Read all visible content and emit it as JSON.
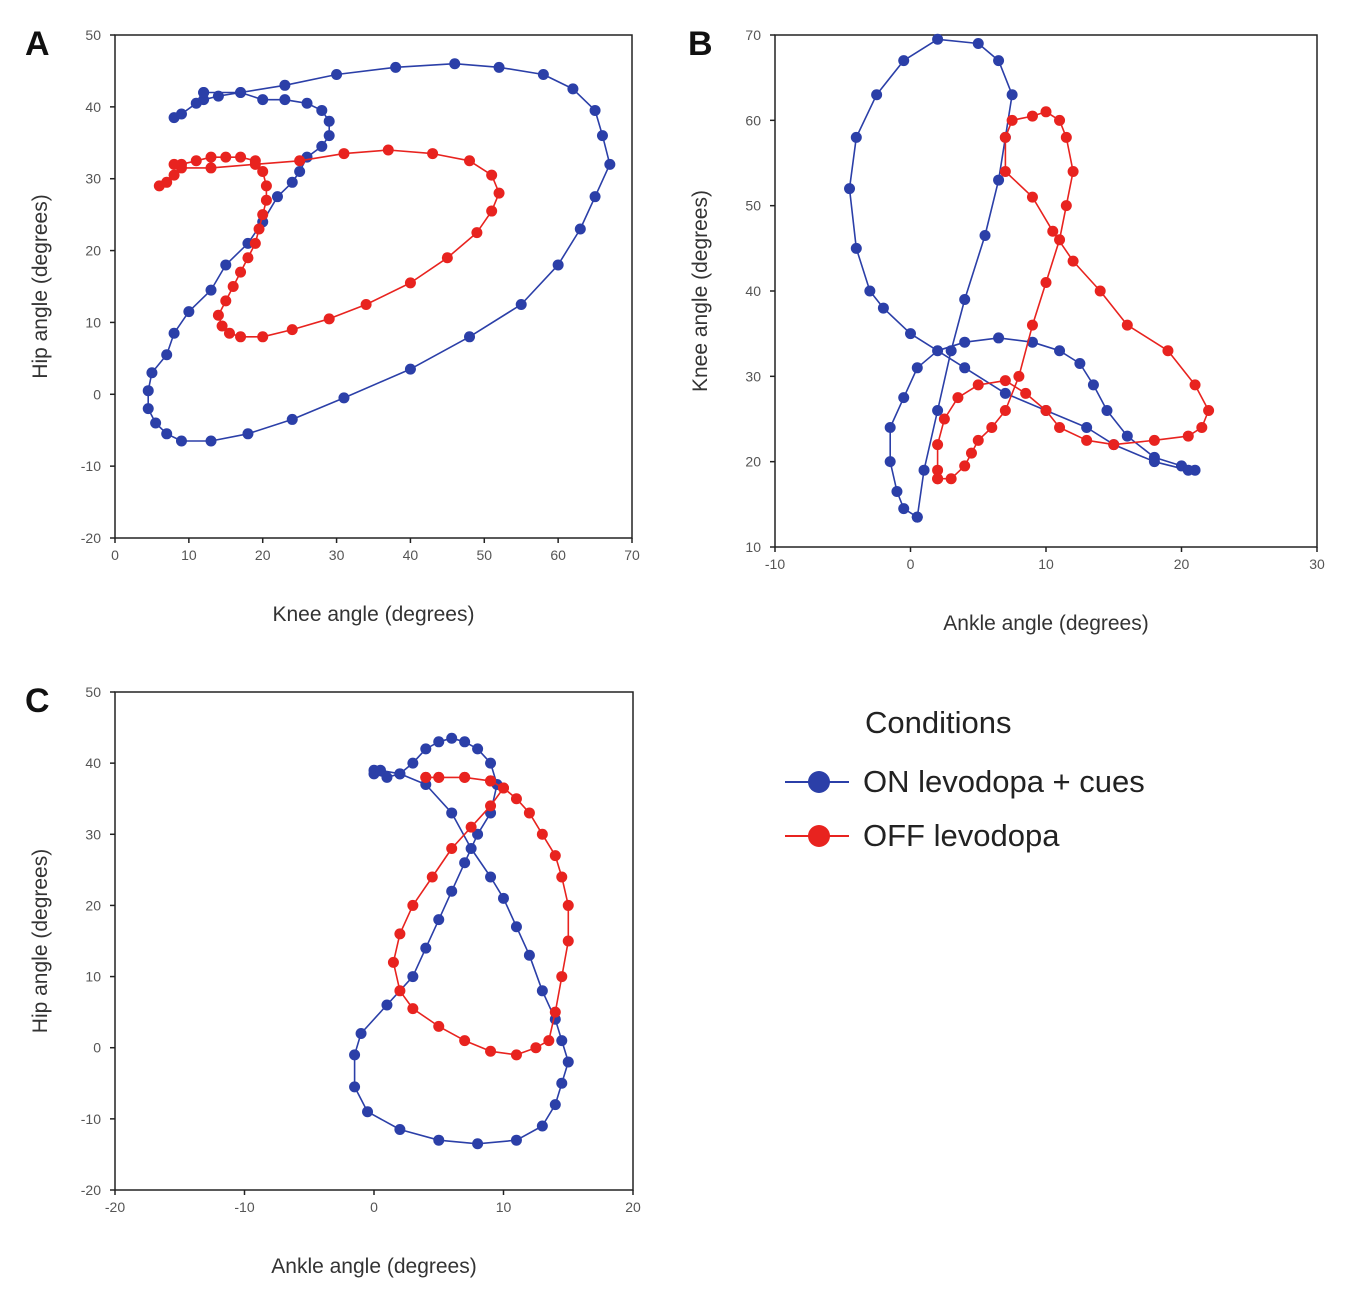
{
  "colors": {
    "on": "#2b3fa8",
    "off": "#e8231f"
  },
  "legend": {
    "title": "Conditions",
    "items": [
      {
        "label": "ON levodopa + cues",
        "color": "#2b3fa8"
      },
      {
        "label": "OFF levodopa",
        "color": "#e8231f"
      }
    ]
  },
  "chart_data": [
    {
      "panel": "A",
      "type": "line",
      "xlabel": "Knee angle (degrees)",
      "ylabel": "Hip angle (degrees)",
      "xlim": [
        0,
        70
      ],
      "ylim": [
        -20,
        50
      ],
      "xticks": [
        0,
        10,
        20,
        30,
        40,
        50,
        60,
        70
      ],
      "yticks": [
        -20,
        -10,
        0,
        10,
        20,
        30,
        40,
        50
      ],
      "series": [
        {
          "condition": "ON levodopa + cues",
          "points": [
            [
              8,
              38.5
            ],
            [
              9,
              39
            ],
            [
              11,
              40.5
            ],
            [
              12,
              42
            ],
            [
              12,
              41
            ],
            [
              14,
              41.5
            ],
            [
              17,
              42
            ],
            [
              20,
              41
            ],
            [
              23,
              41
            ],
            [
              26,
              40.5
            ],
            [
              28,
              39.5
            ],
            [
              29,
              38
            ],
            [
              29,
              36
            ],
            [
              28,
              34.5
            ],
            [
              26,
              33
            ],
            [
              25,
              31
            ],
            [
              24,
              29.5
            ],
            [
              22,
              27.5
            ],
            [
              20,
              24
            ],
            [
              18,
              21
            ],
            [
              15,
              18
            ],
            [
              13,
              14.5
            ],
            [
              10,
              11.5
            ],
            [
              8,
              8.5
            ],
            [
              7,
              5.5
            ],
            [
              5,
              3
            ],
            [
              4.5,
              0.5
            ],
            [
              4.5,
              -2
            ],
            [
              5.5,
              -4
            ],
            [
              7,
              -5.5
            ],
            [
              9,
              -6.5
            ],
            [
              13,
              -6.5
            ],
            [
              18,
              -5.5
            ],
            [
              24,
              -3.5
            ],
            [
              31,
              -0.5
            ],
            [
              40,
              3.5
            ],
            [
              48,
              8
            ],
            [
              55,
              12.5
            ],
            [
              60,
              18
            ],
            [
              63,
              23
            ],
            [
              65,
              27.5
            ],
            [
              67,
              32
            ],
            [
              66,
              36
            ],
            [
              65,
              39.5
            ],
            [
              62,
              42.5
            ],
            [
              58,
              44.5
            ],
            [
              52,
              45.5
            ],
            [
              46,
              46
            ],
            [
              38,
              45.5
            ],
            [
              30,
              44.5
            ],
            [
              23,
              43
            ],
            [
              17,
              42
            ],
            [
              12,
              42
            ]
          ]
        },
        {
          "condition": "OFF levodopa",
          "points": [
            [
              6,
              29
            ],
            [
              7,
              29.5
            ],
            [
              8,
              30.5
            ],
            [
              9,
              32
            ],
            [
              11,
              32.5
            ],
            [
              13,
              33
            ],
            [
              15,
              33
            ],
            [
              17,
              33
            ],
            [
              19,
              32.5
            ],
            [
              20,
              31
            ],
            [
              20.5,
              29
            ],
            [
              20.5,
              27
            ],
            [
              20,
              25
            ],
            [
              19.5,
              23
            ],
            [
              19,
              21
            ],
            [
              18,
              19
            ],
            [
              17,
              17
            ],
            [
              16,
              15
            ],
            [
              15,
              13
            ],
            [
              14,
              11
            ],
            [
              14.5,
              9.5
            ],
            [
              15.5,
              8.5
            ],
            [
              17,
              8
            ],
            [
              20,
              8
            ],
            [
              24,
              9
            ],
            [
              29,
              10.5
            ],
            [
              34,
              12.5
            ],
            [
              40,
              15.5
            ],
            [
              45,
              19
            ],
            [
              49,
              22.5
            ],
            [
              51,
              25.5
            ],
            [
              52,
              28
            ],
            [
              51,
              30.5
            ],
            [
              48,
              32.5
            ],
            [
              43,
              33.5
            ],
            [
              37,
              34
            ],
            [
              31,
              33.5
            ],
            [
              25,
              32.5
            ],
            [
              19,
              32
            ],
            [
              13,
              31.5
            ],
            [
              9,
              31.5
            ],
            [
              8,
              32
            ]
          ]
        }
      ]
    },
    {
      "panel": "B",
      "type": "line",
      "xlabel": "Ankle angle (degrees)",
      "ylabel": "Knee angle (degrees)",
      "xlim": [
        -10,
        30
      ],
      "ylim": [
        10,
        70
      ],
      "xticks": [
        -10,
        0,
        10,
        20,
        30
      ],
      "yticks": [
        10,
        20,
        30,
        40,
        50,
        60,
        70
      ],
      "series": [
        {
          "condition": "ON levodopa + cues",
          "points": [
            [
              0.5,
              13.5
            ],
            [
              -0.5,
              14.5
            ],
            [
              -1,
              16.5
            ],
            [
              -1.5,
              20
            ],
            [
              -1.5,
              24
            ],
            [
              -0.5,
              27.5
            ],
            [
              0.5,
              31
            ],
            [
              2,
              33
            ],
            [
              4,
              34
            ],
            [
              6.5,
              34.5
            ],
            [
              9,
              34
            ],
            [
              11,
              33
            ],
            [
              12.5,
              31.5
            ],
            [
              13.5,
              29
            ],
            [
              14.5,
              26
            ],
            [
              16,
              23
            ],
            [
              18,
              20.5
            ],
            [
              20,
              19.5
            ],
            [
              21,
              19
            ],
            [
              20.5,
              19
            ],
            [
              18,
              20
            ],
            [
              15,
              22
            ],
            [
              13,
              24
            ],
            [
              10,
              26
            ],
            [
              7,
              28
            ],
            [
              4,
              31
            ],
            [
              0,
              35
            ],
            [
              -2,
              38
            ],
            [
              -3,
              40
            ],
            [
              -4,
              45
            ],
            [
              -4.5,
              52
            ],
            [
              -4,
              58
            ],
            [
              -2.5,
              63
            ],
            [
              -0.5,
              67
            ],
            [
              2,
              69.5
            ],
            [
              5,
              69
            ],
            [
              6.5,
              67
            ],
            [
              7.5,
              63
            ],
            [
              7,
              58
            ],
            [
              6.5,
              53
            ],
            [
              5.5,
              46.5
            ],
            [
              4,
              39
            ],
            [
              3,
              33
            ],
            [
              2,
              26
            ],
            [
              1,
              19
            ],
            [
              0.5,
              13.5
            ]
          ]
        },
        {
          "condition": "OFF levodopa",
          "points": [
            [
              2,
              18
            ],
            [
              3,
              18
            ],
            [
              4,
              19.5
            ],
            [
              4.5,
              21
            ],
            [
              5,
              22.5
            ],
            [
              6,
              24
            ],
            [
              7,
              26
            ],
            [
              8,
              30
            ],
            [
              9,
              36
            ],
            [
              10,
              41
            ],
            [
              11,
              46
            ],
            [
              11.5,
              50
            ],
            [
              12,
              54
            ],
            [
              11.5,
              58
            ],
            [
              11,
              60
            ],
            [
              10,
              61
            ],
            [
              9,
              60.5
            ],
            [
              7.5,
              60
            ],
            [
              7,
              58
            ],
            [
              7,
              54
            ],
            [
              9,
              51
            ],
            [
              10.5,
              47
            ],
            [
              12,
              43.5
            ],
            [
              14,
              40
            ],
            [
              16,
              36
            ],
            [
              19,
              33
            ],
            [
              21,
              29
            ],
            [
              22,
              26
            ],
            [
              21.5,
              24
            ],
            [
              20.5,
              23
            ],
            [
              18,
              22.5
            ],
            [
              15,
              22
            ],
            [
              13,
              22.5
            ],
            [
              11,
              24
            ],
            [
              10,
              26
            ],
            [
              8.5,
              28
            ],
            [
              7,
              29.5
            ],
            [
              5,
              29
            ],
            [
              3.5,
              27.5
            ],
            [
              2.5,
              25
            ],
            [
              2,
              22
            ],
            [
              2,
              19
            ],
            [
              2,
              18
            ]
          ]
        }
      ]
    },
    {
      "panel": "C",
      "type": "line",
      "xlabel": "Ankle angle (degrees)",
      "ylabel": "Hip angle (degrees)",
      "xlim": [
        -20,
        20
      ],
      "ylim": [
        -20,
        50
      ],
      "xticks": [
        -20,
        -10,
        0,
        10,
        20
      ],
      "yticks": [
        -20,
        -10,
        0,
        10,
        20,
        30,
        40,
        50
      ],
      "series": [
        {
          "condition": "ON levodopa + cues",
          "points": [
            [
              0,
              39
            ],
            [
              0,
              38.5
            ],
            [
              1,
              38
            ],
            [
              2,
              38.5
            ],
            [
              3,
              40
            ],
            [
              4,
              42
            ],
            [
              5,
              43
            ],
            [
              6,
              43.5
            ],
            [
              7,
              43
            ],
            [
              8,
              42
            ],
            [
              9,
              40
            ],
            [
              9.5,
              37
            ],
            [
              9,
              33
            ],
            [
              8,
              30
            ],
            [
              7,
              26
            ],
            [
              6,
              22
            ],
            [
              5,
              18
            ],
            [
              4,
              14
            ],
            [
              3,
              10
            ],
            [
              1,
              6
            ],
            [
              -1,
              2
            ],
            [
              -1.5,
              -1
            ],
            [
              -1.5,
              -5.5
            ],
            [
              -0.5,
              -9
            ],
            [
              2,
              -11.5
            ],
            [
              5,
              -13
            ],
            [
              8,
              -13.5
            ],
            [
              11,
              -13
            ],
            [
              13,
              -11
            ],
            [
              14,
              -8
            ],
            [
              14.5,
              -5
            ],
            [
              15,
              -2
            ],
            [
              14.5,
              1
            ],
            [
              14,
              4
            ],
            [
              13,
              8
            ],
            [
              12,
              13
            ],
            [
              11,
              17
            ],
            [
              10,
              21
            ],
            [
              9,
              24
            ],
            [
              7.5,
              28
            ],
            [
              6,
              33
            ],
            [
              4,
              37
            ],
            [
              2,
              38.5
            ],
            [
              0.5,
              39
            ]
          ]
        },
        {
          "condition": "OFF levodopa",
          "points": [
            [
              4,
              38
            ],
            [
              5,
              38
            ],
            [
              7,
              38
            ],
            [
              9,
              37.5
            ],
            [
              10,
              36.5
            ],
            [
              11,
              35
            ],
            [
              12,
              33
            ],
            [
              13,
              30
            ],
            [
              14,
              27
            ],
            [
              14.5,
              24
            ],
            [
              15,
              20
            ],
            [
              15,
              15
            ],
            [
              14.5,
              10
            ],
            [
              14,
              5
            ],
            [
              13.5,
              1
            ],
            [
              12.5,
              0
            ],
            [
              11,
              -1
            ],
            [
              9,
              -0.5
            ],
            [
              7,
              1
            ],
            [
              5,
              3
            ],
            [
              3,
              5.5
            ],
            [
              2,
              8
            ],
            [
              1.5,
              12
            ],
            [
              2,
              16
            ],
            [
              3,
              20
            ],
            [
              4.5,
              24
            ],
            [
              6,
              28
            ],
            [
              7.5,
              31
            ],
            [
              9,
              34
            ],
            [
              10,
              36.5
            ],
            [
              9,
              37.5
            ],
            [
              7,
              38
            ],
            [
              5,
              38
            ],
            [
              4,
              38
            ]
          ]
        }
      ]
    }
  ]
}
